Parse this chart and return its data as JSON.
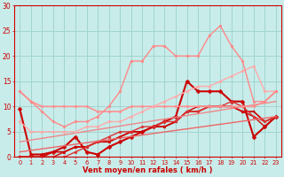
{
  "bg_color": "#c8ecea",
  "grid_color": "#a0d4d0",
  "xlabel": "Vent moyen/en rafales ( km/h )",
  "xlim": [
    -0.5,
    23.5
  ],
  "ylim": [
    0,
    30
  ],
  "yticks": [
    0,
    5,
    10,
    15,
    20,
    25,
    30
  ],
  "xticks": [
    0,
    1,
    2,
    3,
    4,
    5,
    6,
    7,
    8,
    9,
    10,
    11,
    12,
    13,
    14,
    15,
    16,
    17,
    18,
    19,
    20,
    21,
    22,
    23
  ],
  "lines": [
    {
      "x": [
        0,
        1,
        2,
        3,
        4,
        5,
        6,
        7,
        8,
        9,
        10,
        11,
        12,
        13,
        14,
        15,
        16,
        17,
        18,
        19,
        20,
        21,
        22,
        23
      ],
      "y": [
        9.5,
        0.5,
        0.5,
        1,
        2,
        4,
        1,
        0.5,
        2,
        3,
        4,
        5,
        6,
        7,
        8,
        15,
        13,
        13,
        13,
        11,
        11,
        4,
        6,
        8
      ],
      "color": "#cc0000",
      "lw": 1.5,
      "marker": "D",
      "ms": 2.5
    },
    {
      "x": [
        0,
        1,
        2,
        3,
        4,
        5,
        6,
        7,
        8,
        9,
        10,
        11,
        12,
        13,
        14,
        15,
        16,
        17,
        18,
        19,
        20,
        21,
        22,
        23
      ],
      "y": [
        0,
        0,
        0,
        1,
        1,
        2,
        2,
        3,
        3,
        4,
        5,
        5,
        6,
        6,
        7,
        9,
        9,
        10,
        10,
        10,
        9,
        9,
        7,
        8
      ],
      "color": "#cc0000",
      "lw": 1.2,
      "marker": "s",
      "ms": 2
    },
    {
      "x": [
        0,
        1,
        2,
        3,
        4,
        5,
        6,
        7,
        8,
        9,
        10,
        11,
        12,
        13,
        14,
        15,
        16,
        17,
        18,
        19,
        20,
        21,
        22,
        23
      ],
      "y": [
        0,
        0,
        0,
        0,
        1,
        2,
        2,
        3,
        3,
        4,
        5,
        5,
        6,
        6,
        7,
        9,
        10,
        10,
        10,
        10,
        9,
        8,
        6,
        8
      ],
      "color": "#cc0000",
      "lw": 1.0,
      "marker": "^",
      "ms": 2
    },
    {
      "x": [
        0,
        1,
        2,
        3,
        4,
        5,
        6,
        7,
        8,
        9,
        10,
        11,
        12,
        13,
        14,
        15,
        16,
        17,
        18,
        19,
        20,
        21,
        22,
        23
      ],
      "y": [
        0,
        0,
        0,
        0,
        0,
        1,
        2,
        3,
        4,
        5,
        5,
        6,
        6,
        7,
        7,
        9,
        9,
        10,
        10,
        11,
        10,
        8,
        7,
        8
      ],
      "color": "#dd3333",
      "lw": 1.0,
      "marker": "o",
      "ms": 2
    },
    {
      "x": [
        0,
        23
      ],
      "y": [
        1,
        8
      ],
      "color": "#ee6666",
      "lw": 1.0,
      "marker": "none",
      "ms": 0
    },
    {
      "x": [
        0,
        23
      ],
      "y": [
        3,
        11
      ],
      "color": "#ee8888",
      "lw": 1.0,
      "marker": "none",
      "ms": 0
    },
    {
      "x": [
        0,
        1,
        2,
        3,
        4,
        5,
        6,
        7,
        8,
        9,
        10,
        11,
        12,
        13,
        14,
        15,
        16,
        17,
        18,
        19,
        20,
        21,
        22,
        23
      ],
      "y": [
        13,
        11,
        10,
        10,
        10,
        10,
        10,
        9,
        9,
        9,
        10,
        10,
        10,
        10,
        10,
        10,
        10,
        10,
        10,
        10,
        10,
        10,
        11,
        13
      ],
      "color": "#ff9090",
      "lw": 1.2,
      "marker": "o",
      "ms": 2
    },
    {
      "x": [
        0,
        1,
        2,
        3,
        4,
        5,
        6,
        7,
        8,
        9,
        10,
        11,
        12,
        13,
        14,
        15,
        16,
        17,
        18,
        19,
        20,
        21,
        22,
        23
      ],
      "y": [
        7,
        5,
        5,
        5,
        5,
        5,
        6,
        6,
        7,
        7,
        8,
        9,
        10,
        11,
        12,
        13,
        14,
        14,
        15,
        16,
        17,
        18,
        13,
        13
      ],
      "color": "#ffaaaa",
      "lw": 1.0,
      "marker": "o",
      "ms": 2
    },
    {
      "x": [
        0,
        1,
        2,
        3,
        4,
        5,
        6,
        7,
        8,
        9,
        10,
        11,
        12,
        13,
        14,
        15,
        16,
        17,
        18,
        19,
        20,
        21,
        22,
        23
      ],
      "y": [
        13,
        11,
        9,
        7,
        6,
        7,
        7,
        8,
        10,
        13,
        19,
        19,
        22,
        22,
        20,
        20,
        20,
        24,
        26,
        22,
        19,
        11,
        11,
        13
      ],
      "color": "#ff8888",
      "lw": 1.0,
      "marker": "o",
      "ms": 2
    }
  ]
}
